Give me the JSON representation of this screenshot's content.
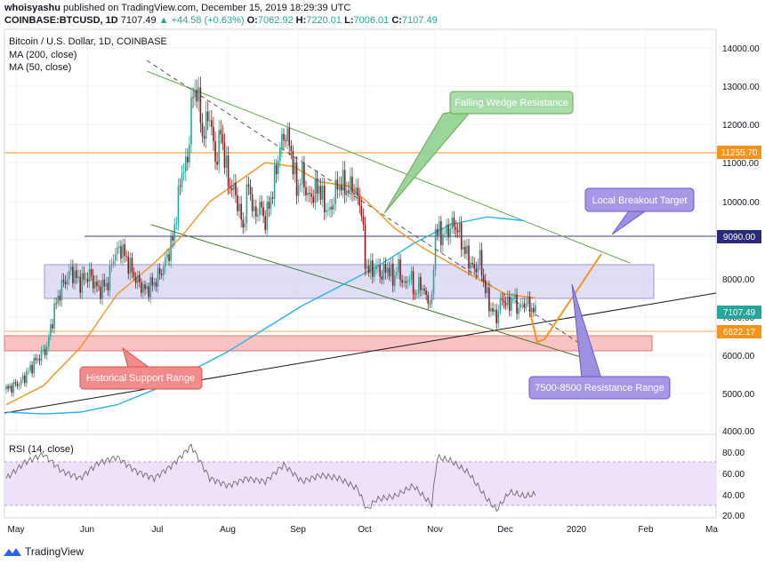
{
  "header": {
    "author": "whoisyashu",
    "published_text": "published on TradingView.com, December 15, 2019 18:29:39 UTC",
    "symbol": "COINBASE:BTCUSD, 1D",
    "last": "7107.49",
    "change": "+44.58 (+0.63%)",
    "o_label": "O:",
    "o_val": "7062.92",
    "h_label": "H:",
    "h_val": "7220.01",
    "l_label": "L:",
    "l_val": "7006.01",
    "c_label": "C:",
    "c_val": "7107.49"
  },
  "legend": {
    "title": "Bitcoin / U.S. Dollar, 1D, COINBASE",
    "ma200": "MA (200, close)",
    "ma50": "MA (50, close)"
  },
  "price_labels": {
    "r1": "11255.70",
    "r2": "9090.00",
    "last": "7107.49",
    "s1": "6622.17"
  },
  "annotations": {
    "wedge": "Falling Wedge Resistance",
    "breakout": "Local Breakout Target",
    "support": "Historical Support Range",
    "resistance": "7500-8500 Resistance Range"
  },
  "rsi_label": "RSI (14, close)",
  "footer": {
    "brand": "TradingView"
  },
  "colors": {
    "candle_up": "#26a69a",
    "candle_down": "#8b1a1a",
    "ma200": "#26b5e8",
    "ma50": "#f7931a",
    "wedge": "#6aa84f",
    "support_fill": "#f8b4b4",
    "resistance_fill": "#d6d3f0",
    "rsi_line": "#6a6a6a",
    "rsi_band": "#ecdcf8"
  },
  "chart_data": {
    "type": "candlestick",
    "price_axis": {
      "min": 4000,
      "max": 14000,
      "ticks": [
        "14000.00",
        "13000.00",
        "12000.00",
        "11000.00",
        "10000.00",
        "9000.00",
        "8000.00",
        "7000.00",
        "6000.00",
        "5000.00",
        "4000.00"
      ]
    },
    "time_axis": {
      "ticks": [
        "May",
        "Jun",
        "Jul",
        "Aug",
        "Sep",
        "Oct",
        "Nov",
        "Dec",
        "2020",
        "Feb",
        "Ma"
      ]
    },
    "rsi_axis": {
      "ticks": [
        "80.00",
        "60.00",
        "40.00",
        "20.00"
      ]
    },
    "close_path": [
      [
        0,
        5100
      ],
      [
        8,
        5300
      ],
      [
        15,
        5800
      ],
      [
        22,
        6200
      ],
      [
        26,
        7200
      ],
      [
        30,
        7800
      ],
      [
        35,
        8200
      ],
      [
        40,
        7900
      ],
      [
        45,
        8100
      ],
      [
        50,
        7700
      ],
      [
        55,
        7900
      ],
      [
        58,
        8600
      ],
      [
        62,
        8800
      ],
      [
        66,
        8400
      ],
      [
        70,
        8000
      ],
      [
        75,
        7700
      ],
      [
        80,
        7900
      ],
      [
        85,
        8300
      ],
      [
        90,
        9000
      ],
      [
        95,
        10800
      ],
      [
        98,
        11000
      ],
      [
        100,
        12500
      ],
      [
        103,
        13000
      ],
      [
        106,
        11700
      ],
      [
        110,
        12300
      ],
      [
        113,
        11000
      ],
      [
        116,
        11800
      ],
      [
        120,
        10500
      ],
      [
        124,
        10200
      ],
      [
        128,
        9300
      ],
      [
        131,
        10500
      ],
      [
        134,
        9600
      ],
      [
        137,
        9900
      ],
      [
        140,
        9500
      ],
      [
        144,
        10300
      ],
      [
        148,
        11400
      ],
      [
        151,
        11800
      ],
      [
        154,
        11300
      ],
      [
        157,
        10300
      ],
      [
        160,
        10700
      ],
      [
        163,
        10100
      ],
      [
        166,
        10200
      ],
      [
        169,
        10400
      ],
      [
        172,
        9900
      ],
      [
        175,
        9700
      ],
      [
        178,
        10300
      ],
      [
        181,
        10500
      ],
      [
        184,
        10300
      ],
      [
        187,
        10400
      ],
      [
        190,
        10100
      ],
      [
        192,
        9800
      ],
      [
        194,
        8400
      ],
      [
        197,
        8200
      ],
      [
        200,
        8300
      ],
      [
        203,
        8100
      ],
      [
        206,
        8300
      ],
      [
        209,
        8000
      ],
      [
        212,
        8300
      ],
      [
        215,
        7800
      ],
      [
        218,
        8100
      ],
      [
        221,
        7600
      ],
      [
        224,
        7900
      ],
      [
        227,
        7500
      ],
      [
        230,
        7400
      ],
      [
        232,
        9300
      ],
      [
        235,
        9100
      ],
      [
        238,
        9200
      ],
      [
        241,
        9400
      ],
      [
        244,
        9300
      ],
      [
        247,
        8800
      ],
      [
        250,
        8500
      ],
      [
        253,
        8200
      ],
      [
        256,
        8500
      ],
      [
        259,
        7700
      ],
      [
        262,
        7200
      ],
      [
        265,
        7000
      ],
      [
        268,
        7500
      ],
      [
        271,
        7300
      ],
      [
        274,
        7500
      ],
      [
        277,
        7200
      ],
      [
        280,
        7400
      ],
      [
        283,
        7300
      ],
      [
        286,
        7100
      ]
    ],
    "ma200_path": [
      [
        0,
        4500
      ],
      [
        20,
        4450
      ],
      [
        40,
        4500
      ],
      [
        60,
        4700
      ],
      [
        80,
        5100
      ],
      [
        100,
        5600
      ],
      [
        120,
        6100
      ],
      [
        140,
        6700
      ],
      [
        160,
        7300
      ],
      [
        180,
        7800
      ],
      [
        200,
        8300
      ],
      [
        220,
        8900
      ],
      [
        240,
        9400
      ],
      [
        260,
        9600
      ],
      [
        280,
        9500
      ]
    ],
    "ma50_path": [
      [
        0,
        4700
      ],
      [
        20,
        5200
      ],
      [
        40,
        6200
      ],
      [
        60,
        7600
      ],
      [
        80,
        8400
      ],
      [
        95,
        9100
      ],
      [
        110,
        10000
      ],
      [
        125,
        10500
      ],
      [
        140,
        11000
      ],
      [
        155,
        10900
      ],
      [
        170,
        10500
      ],
      [
        185,
        10400
      ],
      [
        195,
        10000
      ],
      [
        210,
        9300
      ],
      [
        225,
        8800
      ],
      [
        240,
        8400
      ],
      [
        255,
        8000
      ],
      [
        270,
        7600
      ],
      [
        286,
        7500
      ]
    ],
    "rsi_path": [
      [
        0,
        55
      ],
      [
        10,
        70
      ],
      [
        20,
        78
      ],
      [
        30,
        62
      ],
      [
        40,
        55
      ],
      [
        50,
        70
      ],
      [
        60,
        75
      ],
      [
        70,
        62
      ],
      [
        80,
        55
      ],
      [
        90,
        68
      ],
      [
        100,
        86
      ],
      [
        110,
        55
      ],
      [
        120,
        48
      ],
      [
        130,
        55
      ],
      [
        140,
        52
      ],
      [
        150,
        68
      ],
      [
        160,
        52
      ],
      [
        170,
        58
      ],
      [
        180,
        55
      ],
      [
        190,
        45
      ],
      [
        195,
        25
      ],
      [
        200,
        35
      ],
      [
        210,
        38
      ],
      [
        220,
        48
      ],
      [
        230,
        30
      ],
      [
        233,
        75
      ],
      [
        240,
        72
      ],
      [
        250,
        60
      ],
      [
        260,
        35
      ],
      [
        265,
        25
      ],
      [
        272,
        42
      ],
      [
        280,
        38
      ],
      [
        286,
        40
      ]
    ],
    "levels": {
      "r1": 11255.7,
      "r2": 9090.0,
      "s1": 6622.17
    },
    "zones": {
      "resistance": [
        7500,
        8500
      ],
      "support": [
        6100,
        6500
      ]
    }
  }
}
